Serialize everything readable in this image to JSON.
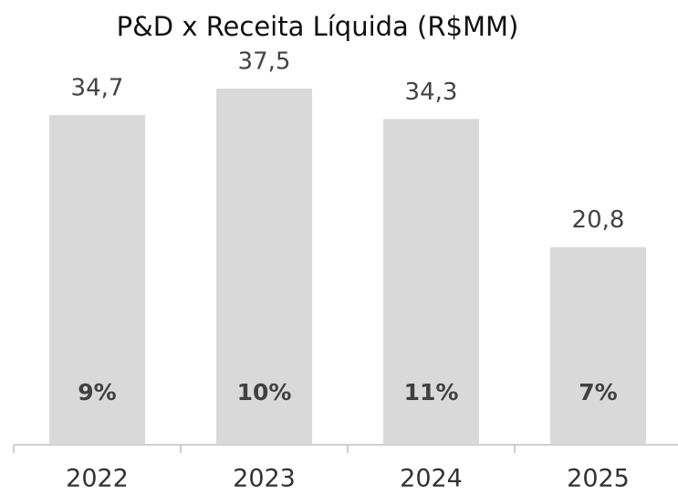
{
  "chart_data": {
    "type": "bar",
    "title": "P&D x Receita Líquida (R$MM)",
    "categories": [
      "2022",
      "2023",
      "2024",
      "2025"
    ],
    "values": [
      34.7,
      37.5,
      34.3,
      20.8
    ],
    "value_labels": [
      "34,7",
      "37,5",
      "34,3",
      "20,8"
    ],
    "share_values": [
      9,
      10,
      11,
      7
    ],
    "share_labels": [
      "9%",
      "10%",
      "11%",
      "7%"
    ],
    "color": "#d9d9d9"
  }
}
